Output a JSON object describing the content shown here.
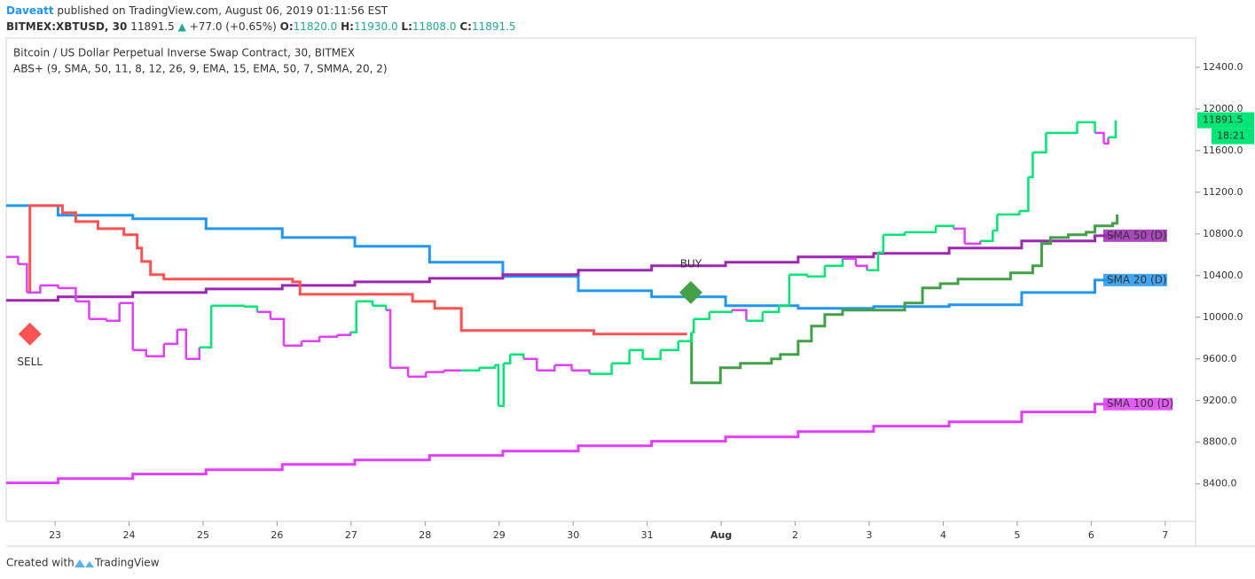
{
  "header": {
    "author": "Daveatt",
    "published": "published on TradingView.com, August 06, 2019 01:11:56 EST",
    "symbol": "BITMEX:XBTUSD, 30",
    "last": "11891.5",
    "arrow": "▲",
    "change": "+77.0 (+0.65%)",
    "o_label": "O:",
    "o": "11820.0",
    "h_label": "H:",
    "h": "11930.0",
    "l_label": "L:",
    "l": "11808.0",
    "c_label": "C:",
    "c": "11891.5"
  },
  "footer": {
    "created": "Created with",
    "brand": "TradingView"
  },
  "chart_data": {
    "type": "line",
    "title": "Bitcoin / US Dollar Perpetual Inverse Swap Contract, 30, BITMEX",
    "subtitle": "ABS+ (9, SMA, 50, 11, 8, 12, 26, 9, EMA, 15, EMA, 50, 7, SMMA, 20, 2)",
    "xlim": [
      0.34,
      16.41
    ],
    "xticks": [
      {
        "value": 1,
        "label": "23"
      },
      {
        "value": 2,
        "label": "24"
      },
      {
        "value": 3,
        "label": "25"
      },
      {
        "value": 4,
        "label": "26"
      },
      {
        "value": 5,
        "label": "27"
      },
      {
        "value": 6,
        "label": "28"
      },
      {
        "value": 7,
        "label": "29"
      },
      {
        "value": 8,
        "label": "30"
      },
      {
        "value": 9,
        "label": "31"
      },
      {
        "value": 10,
        "label": "Aug"
      },
      {
        "value": 11,
        "label": "2"
      },
      {
        "value": 12,
        "label": "3"
      },
      {
        "value": 13,
        "label": "4"
      },
      {
        "value": 14,
        "label": "5"
      },
      {
        "value": 15,
        "label": "6"
      },
      {
        "value": 16,
        "label": "7"
      }
    ],
    "ylim": [
      8040,
      12680
    ],
    "yticks": [
      {
        "value": 8400,
        "label": "8400.0"
      },
      {
        "value": 8800,
        "label": "8800.0"
      },
      {
        "value": 9200,
        "label": "9200.0"
      },
      {
        "value": 9600,
        "label": "9600.0"
      },
      {
        "value": 10000,
        "label": "10000.0"
      },
      {
        "value": 10400,
        "label": "10400.0"
      },
      {
        "value": 10800,
        "label": "10800.0"
      },
      {
        "value": 11200,
        "label": "11200.0"
      },
      {
        "value": 11600,
        "label": "11600.0"
      },
      {
        "value": 12000,
        "label": "12000.0"
      },
      {
        "value": 12400,
        "label": "12400.0"
      }
    ],
    "grid": false,
    "step": true,
    "series": [
      {
        "name": "SMA 100 (D)",
        "color": "#e040fb",
        "width": 3,
        "x": [
          0.34,
          1.04,
          2.05,
          3.04,
          4.07,
          5.05,
          6.06,
          7.05,
          8.07,
          9.06,
          10.06,
          11.04,
          12.06,
          13.08,
          14.06,
          15.05,
          15.33
        ],
        "values": [
          8409,
          8451,
          8494,
          8536,
          8587,
          8630,
          8673,
          8715,
          8766,
          8809,
          8851,
          8902,
          8954,
          8996,
          9090,
          9166,
          9166
        ]
      },
      {
        "name": "SMA 20 (D)",
        "color": "#2196f3",
        "width": 3,
        "x": [
          0.34,
          1.04,
          2.05,
          3.04,
          4.07,
          5.05,
          6.06,
          7.05,
          8.07,
          9.06,
          10.06,
          11.04,
          12.06,
          13.08,
          14.06,
          15.05,
          15.33
        ],
        "values": [
          11072,
          10979,
          10945,
          10851,
          10766,
          10681,
          10528,
          10392,
          10255,
          10196,
          10111,
          10085,
          10102,
          10119,
          10238,
          10357,
          10357
        ]
      },
      {
        "name": "SMA 50 (D)",
        "color": "#9c27b0",
        "width": 3,
        "x": [
          0.34,
          1.04,
          2.05,
          3.04,
          4.07,
          5.05,
          6.06,
          7.05,
          8.07,
          9.06,
          10.06,
          11.04,
          12.06,
          13.08,
          14.06,
          15.05,
          15.33
        ],
        "values": [
          10162,
          10196,
          10238,
          10272,
          10306,
          10340,
          10374,
          10409,
          10451,
          10494,
          10528,
          10579,
          10613,
          10664,
          10732,
          10783,
          10783
        ]
      },
      {
        "color": "#ff5252",
        "width": 3,
        "x": [
          0.65,
          0.66,
          1.1,
          1.28,
          1.58,
          1.93,
          2.11,
          2.17,
          2.29,
          2.47,
          4.21,
          4.31,
          5.83,
          6.13,
          6.49,
          8.28,
          9.54
        ],
        "values": [
          10238,
          11072,
          11004,
          10919,
          10851,
          10792,
          10664,
          10536,
          10409,
          10366,
          10340,
          10221,
          10153,
          10085,
          9873,
          9839,
          9839
        ]
      },
      {
        "color": "#43a047",
        "width": 3,
        "x": [
          9.58,
          9.6,
          9.99,
          10.26,
          10.68,
          10.8,
          11.04,
          11.22,
          11.4,
          11.64,
          12.48,
          12.72,
          12.96,
          13.2,
          13.91,
          14.21,
          14.33,
          14.45,
          14.69,
          14.93,
          15.05,
          15.29,
          15.35
        ],
        "values": [
          9839,
          9370,
          9515,
          9558,
          9600,
          9643,
          9770,
          9915,
          10026,
          10068,
          10136,
          10281,
          10323,
          10366,
          10426,
          10494,
          10707,
          10766,
          10792,
          10817,
          10877,
          10902,
          10987
        ]
      },
      {
        "color": "#00e676",
        "width": 2.5,
        "last_label": "11891.5",
        "countdown": "18:21",
        "x": [
          0.34,
          0.5,
          0.62,
          0.8,
          1.04,
          1.28,
          1.46,
          1.69,
          1.87,
          2.05,
          2.23,
          2.47,
          2.65,
          2.77,
          2.95,
          3.11,
          3.31,
          3.55,
          3.73,
          3.91,
          4.09,
          4.33,
          4.57,
          4.81,
          4.99,
          5.07,
          5.29,
          5.47,
          5.53,
          5.77,
          6.01,
          6.25,
          6.49,
          6.73,
          6.94,
          6.99,
          7.06,
          7.15,
          7.33,
          7.51,
          7.75,
          7.98,
          8.22,
          8.52,
          8.76,
          8.94,
          9.18,
          9.42,
          9.6,
          9.63,
          9.84,
          10.14,
          10.34,
          10.56,
          10.78,
          10.92,
          11.16,
          11.4,
          11.64,
          11.82,
          11.97,
          12.12,
          12.19,
          12.48,
          12.72,
          12.9,
          13.14,
          13.29,
          13.5,
          13.67,
          13.73,
          14.03,
          14.15,
          14.21,
          14.39,
          14.63,
          14.81,
          15.05,
          15.17,
          15.23,
          15.33
        ],
        "values": [
          10579,
          10510,
          10238,
          10306,
          10280,
          10153,
          9983,
          9966,
          10136,
          9685,
          9626,
          9745,
          9881,
          9600,
          9711,
          10111,
          10111,
          10102,
          10051,
          9983,
          9728,
          9770,
          9813,
          9830,
          9856,
          10153,
          10111,
          10068,
          9515,
          9430,
          9473,
          9490,
          9490,
          9515,
          9541,
          9149,
          9558,
          9643,
          9600,
          9490,
          9541,
          9490,
          9456,
          9558,
          9685,
          9600,
          9685,
          9770,
          9856,
          9983,
          10051,
          10068,
          9966,
          10051,
          10111,
          10409,
          10392,
          10494,
          10562,
          10494,
          10451,
          10622,
          10792,
          10817,
          10817,
          10877,
          10851,
          10707,
          10732,
          10834,
          10987,
          11021,
          11345,
          11583,
          11770,
          11770,
          11872,
          11770,
          11668,
          11728,
          11891.5
        ],
        "colors": [
          "#e040fb",
          "#e040fb",
          "#e040fb",
          "#e040fb",
          "#e040fb",
          "#e040fb",
          "#e040fb",
          "#e040fb",
          "#e040fb",
          "#e040fb",
          "#e040fb",
          "#e040fb",
          "#e040fb",
          "#e040fb",
          "#e040fb",
          "#00e676",
          "#00e676",
          "#00e676",
          "#00e676",
          "#e040fb",
          "#e040fb",
          "#e040fb",
          "#e040fb",
          "#e040fb",
          "#e040fb",
          "#00e676",
          "#00e676",
          "#00e676",
          "#e040fb",
          "#e040fb",
          "#e040fb",
          "#e040fb",
          "#e040fb",
          "#00e676",
          "#00e676",
          "#00e676",
          "#00e676",
          "#00e676",
          "#00e676",
          "#e040fb",
          "#e040fb",
          "#e040fb",
          "#e040fb",
          "#00e676",
          "#00e676",
          "#00e676",
          "#00e676",
          "#00e676",
          "#00e676",
          "#00e676",
          "#00e676",
          "#00e676",
          "#e040fb",
          "#00e676",
          "#00e676",
          "#00e676",
          "#00e676",
          "#00e676",
          "#00e676",
          "#e040fb",
          "#e040fb",
          "#00e676",
          "#00e676",
          "#00e676",
          "#00e676",
          "#00e676",
          "#00e676",
          "#e040fb",
          "#e040fb",
          "#00e676",
          "#00e676",
          "#00e676",
          "#00e676",
          "#00e676",
          "#00e676",
          "#00e676",
          "#00e676",
          "#00e676",
          "#e040fb",
          "#e040fb",
          "#00e676"
        ]
      }
    ],
    "annotations": [
      {
        "label": "SELL",
        "x": 0.66,
        "y": 9839,
        "color": "#ff5252",
        "side": "below"
      },
      {
        "label": "BUY",
        "x": 9.59,
        "y": 10238,
        "color": "#43a047",
        "side": "above"
      }
    ]
  }
}
